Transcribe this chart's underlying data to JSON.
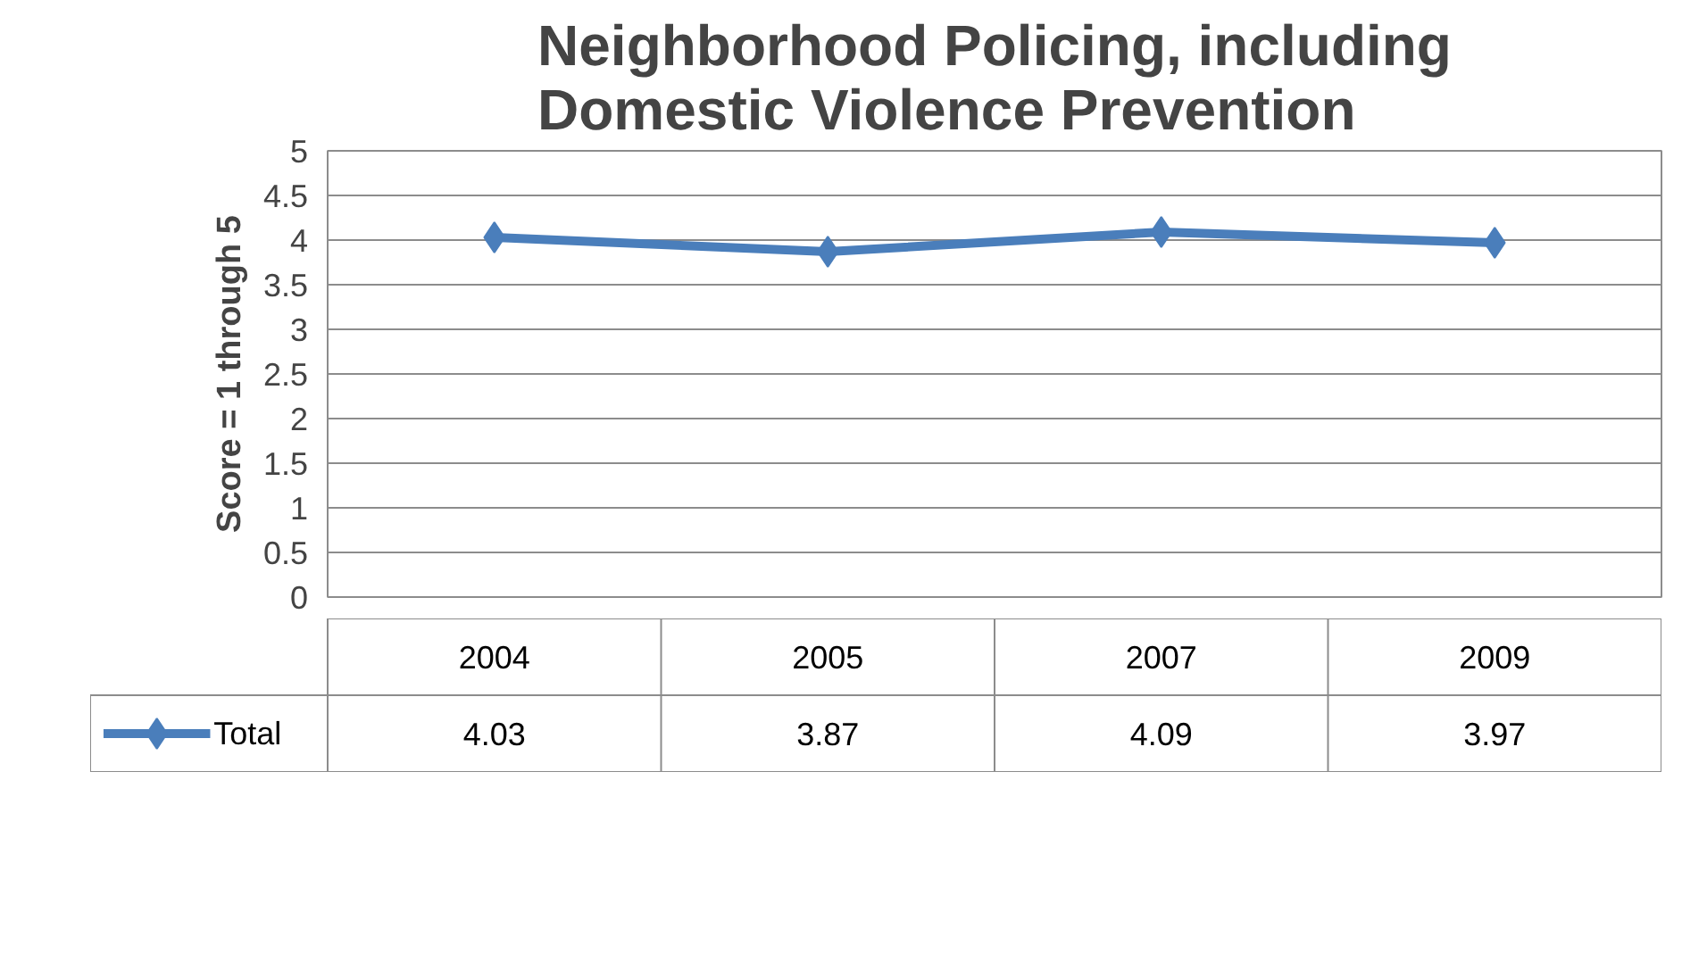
{
  "chart_data": {
    "type": "line",
    "title": "Neighborhood Policing, including Domestic Violence Prevention",
    "ylabel": "Score = 1 through 5",
    "categories": [
      "2004",
      "2005",
      "2007",
      "2009"
    ],
    "series": [
      {
        "name": "Total",
        "color": "#4a7ebb",
        "values": [
          4.03,
          3.87,
          4.09,
          3.97
        ]
      }
    ],
    "ylim": [
      0,
      5
    ],
    "yticks": [
      0,
      0.5,
      1,
      1.5,
      2,
      2.5,
      3,
      3.5,
      4,
      4.5,
      5
    ],
    "grid": "y",
    "legend": "bottom",
    "marker": "diamond",
    "line_style": "solid",
    "data_labels": true
  }
}
